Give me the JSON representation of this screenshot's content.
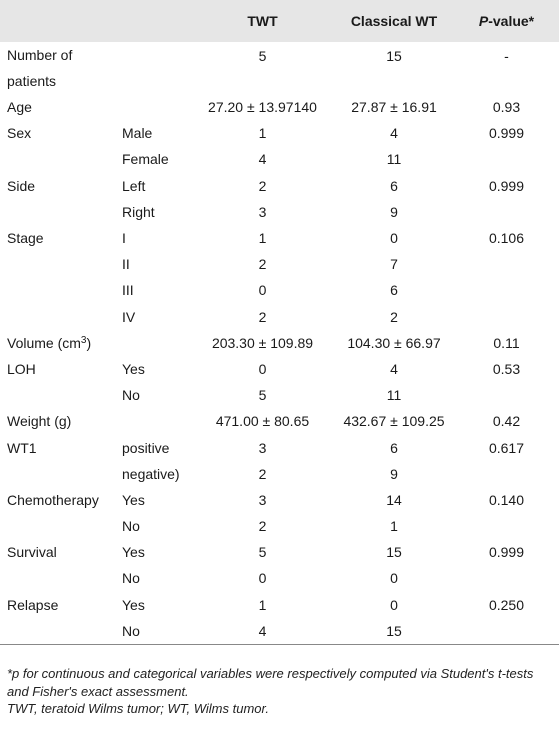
{
  "headers": [
    "",
    "",
    "TWT",
    "Classical WT",
    "P-value*"
  ],
  "pvalue_header": {
    "italic": "P",
    "rest": "-value*"
  },
  "rows": [
    {
      "label": "Number of patients",
      "sub": "",
      "twt": "5",
      "cwt": "15",
      "p": "-"
    },
    {
      "label": "Age",
      "sub": "",
      "twt": "27.20 ± 13.97140",
      "cwt": "27.87 ± 16.91",
      "p": "0.93"
    },
    {
      "label": "Sex",
      "sub": "Male",
      "twt": "1",
      "cwt": "4",
      "p": "0.999"
    },
    {
      "label": "",
      "sub": "Female",
      "twt": "4",
      "cwt": "11",
      "p": ""
    },
    {
      "label": "Side",
      "sub": "Left",
      "twt": "2",
      "cwt": "6",
      "p": "0.999"
    },
    {
      "label": "",
      "sub": "Right",
      "twt": "3",
      "cwt": "9",
      "p": ""
    },
    {
      "label": "Stage",
      "sub": "I",
      "twt": "1",
      "cwt": "0",
      "p": "0.106"
    },
    {
      "label": "",
      "sub": "II",
      "twt": "2",
      "cwt": "7",
      "p": ""
    },
    {
      "label": "",
      "sub": "III",
      "twt": "0",
      "cwt": "6",
      "p": ""
    },
    {
      "label": "",
      "sub": "IV",
      "twt": "2",
      "cwt": "2",
      "p": ""
    },
    {
      "label": "Volume (cm",
      "label_sup": "3",
      "label_after": ")",
      "sub": "",
      "twt": "203.30 ± 109.89",
      "cwt": "104.30 ± 66.97",
      "p": "0.11"
    },
    {
      "label": "LOH",
      "sub": "Yes",
      "twt": "0",
      "cwt": "4",
      "p": "0.53"
    },
    {
      "label": "",
      "sub": "No",
      "twt": "5",
      "cwt": "11",
      "p": ""
    },
    {
      "label": "Weight (g)",
      "sub": "",
      "twt": "471.00 ± 80.65",
      "cwt": "432.67 ± 109.25",
      "p": "0.42"
    },
    {
      "label": "WT1",
      "sub": "positive",
      "twt": "3",
      "cwt": "6",
      "p": "0.617"
    },
    {
      "label": "",
      "sub": "negative)",
      "twt": "2",
      "cwt": "9",
      "p": ""
    },
    {
      "label": "Chemotherapy",
      "sub": "Yes",
      "twt": "3",
      "cwt": "14",
      "p": "0.140"
    },
    {
      "label": "",
      "sub": "No",
      "twt": "2",
      "cwt": "1",
      "p": ""
    },
    {
      "label": "Survival",
      "sub": "Yes",
      "twt": "5",
      "cwt": "15",
      "p": "0.999"
    },
    {
      "label": "",
      "sub": "No",
      "twt": "0",
      "cwt": "0",
      "p": ""
    },
    {
      "label": "Relapse",
      "sub": "Yes",
      "twt": "1",
      "cwt": "0",
      "p": "0.250"
    },
    {
      "label": "",
      "sub": "No",
      "twt": "4",
      "cwt": "15",
      "p": ""
    }
  ],
  "footnotes": [
    "*p for continuous and categorical variables were respectively computed via Student's t-tests and Fisher's exact assessment.",
    "TWT, teratoid Wilms tumor; WT, Wilms tumor."
  ]
}
